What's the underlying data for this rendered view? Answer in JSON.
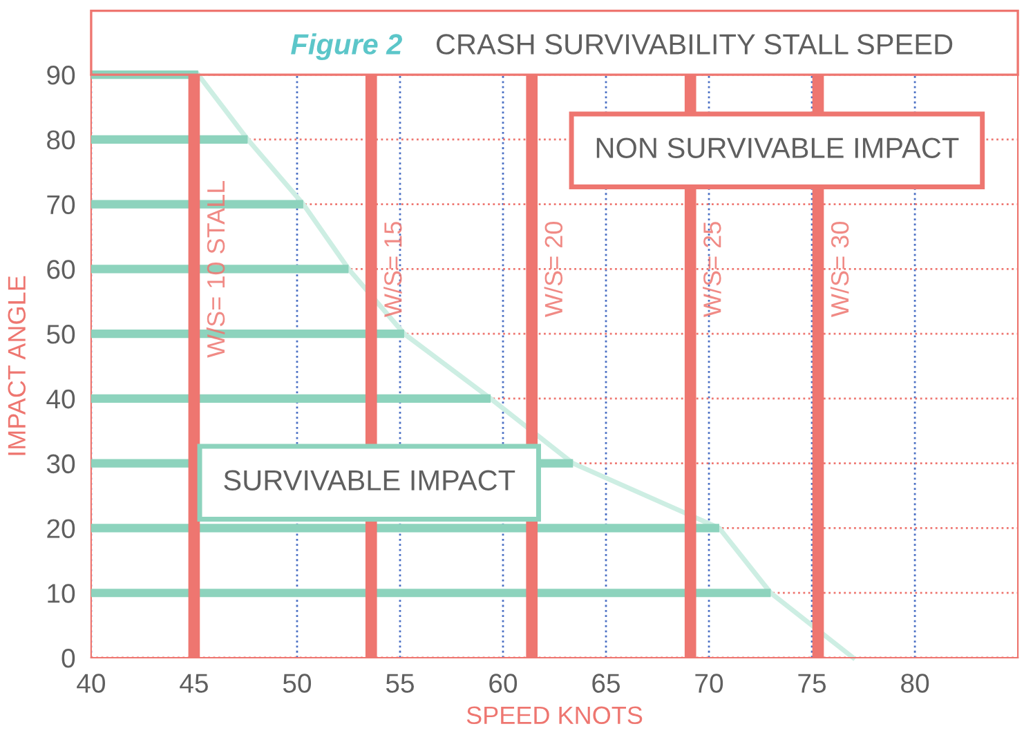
{
  "chart_data": {
    "type": "bar",
    "orientation": "horizontal",
    "title": "Figure 2",
    "subtitle": "CRASH SURVIVABILITY STALL SPEED",
    "xlabel": "SPEED KNOTS",
    "ylabel": "IMPACT ANGLE",
    "categories": [
      "90",
      "80",
      "70",
      "60",
      "50",
      "40",
      "30",
      "20",
      "10",
      "0"
    ],
    "series": [
      {
        "color": "#8dd3bd",
        "values": [
          45.2,
          47.6,
          50.3,
          52.5,
          55.2,
          59.4,
          63.4,
          70.5,
          73.0,
          null
        ]
      },
      {
        "type": "line",
        "color": "#cdeee3",
        "values": [
          45.2,
          47.6,
          50.3,
          52.5,
          55.2,
          59.4,
          63.4,
          70.5,
          73.0,
          77.0
        ]
      }
    ],
    "xlim": [
      40,
      85
    ],
    "xticks": [
      40,
      45,
      50,
      55,
      60,
      65,
      70,
      75,
      80
    ],
    "grid": true,
    "ref_lines": [
      {
        "axis": "x",
        "value": 45.0,
        "color": "#ee7670"
      },
      {
        "axis": "x",
        "value": 53.6,
        "color": "#ee7670"
      },
      {
        "axis": "x",
        "value": 61.4,
        "color": "#ee7670"
      },
      {
        "axis": "x",
        "value": 69.1,
        "color": "#ee7670"
      },
      {
        "axis": "x",
        "value": 75.3,
        "color": "#ee7670"
      }
    ],
    "annotations": [
      "SURVIVABLE IMPACT",
      "NON SURVIVABLE IMPACT",
      {
        "text": "W/S= 10 STALL",
        "x": 45.0,
        "y": "60"
      },
      {
        "text": "W/S= 15",
        "x": 53.6,
        "y": "60"
      },
      {
        "text": "W/S= 20",
        "x": 61.4,
        "y": "60"
      },
      {
        "text": "W/S= 25",
        "x": 69.1,
        "y": "60"
      },
      {
        "text": "W/S= 30",
        "x": 75.3,
        "y": "60"
      }
    ]
  }
}
